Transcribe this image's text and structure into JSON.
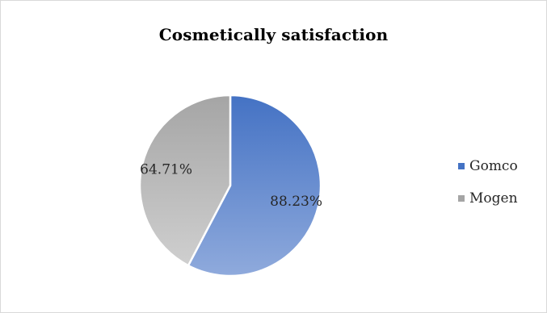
{
  "chart_data": {
    "type": "pie",
    "title": "Cosmetically satisfaction",
    "categories": [
      "Gomco",
      "Mogen"
    ],
    "values": [
      88.23,
      64.71
    ],
    "data_labels": [
      "88.23%",
      "64.71%"
    ],
    "colors": [
      "#4472c4",
      "#a5a5a5"
    ],
    "legend_position": "right"
  }
}
